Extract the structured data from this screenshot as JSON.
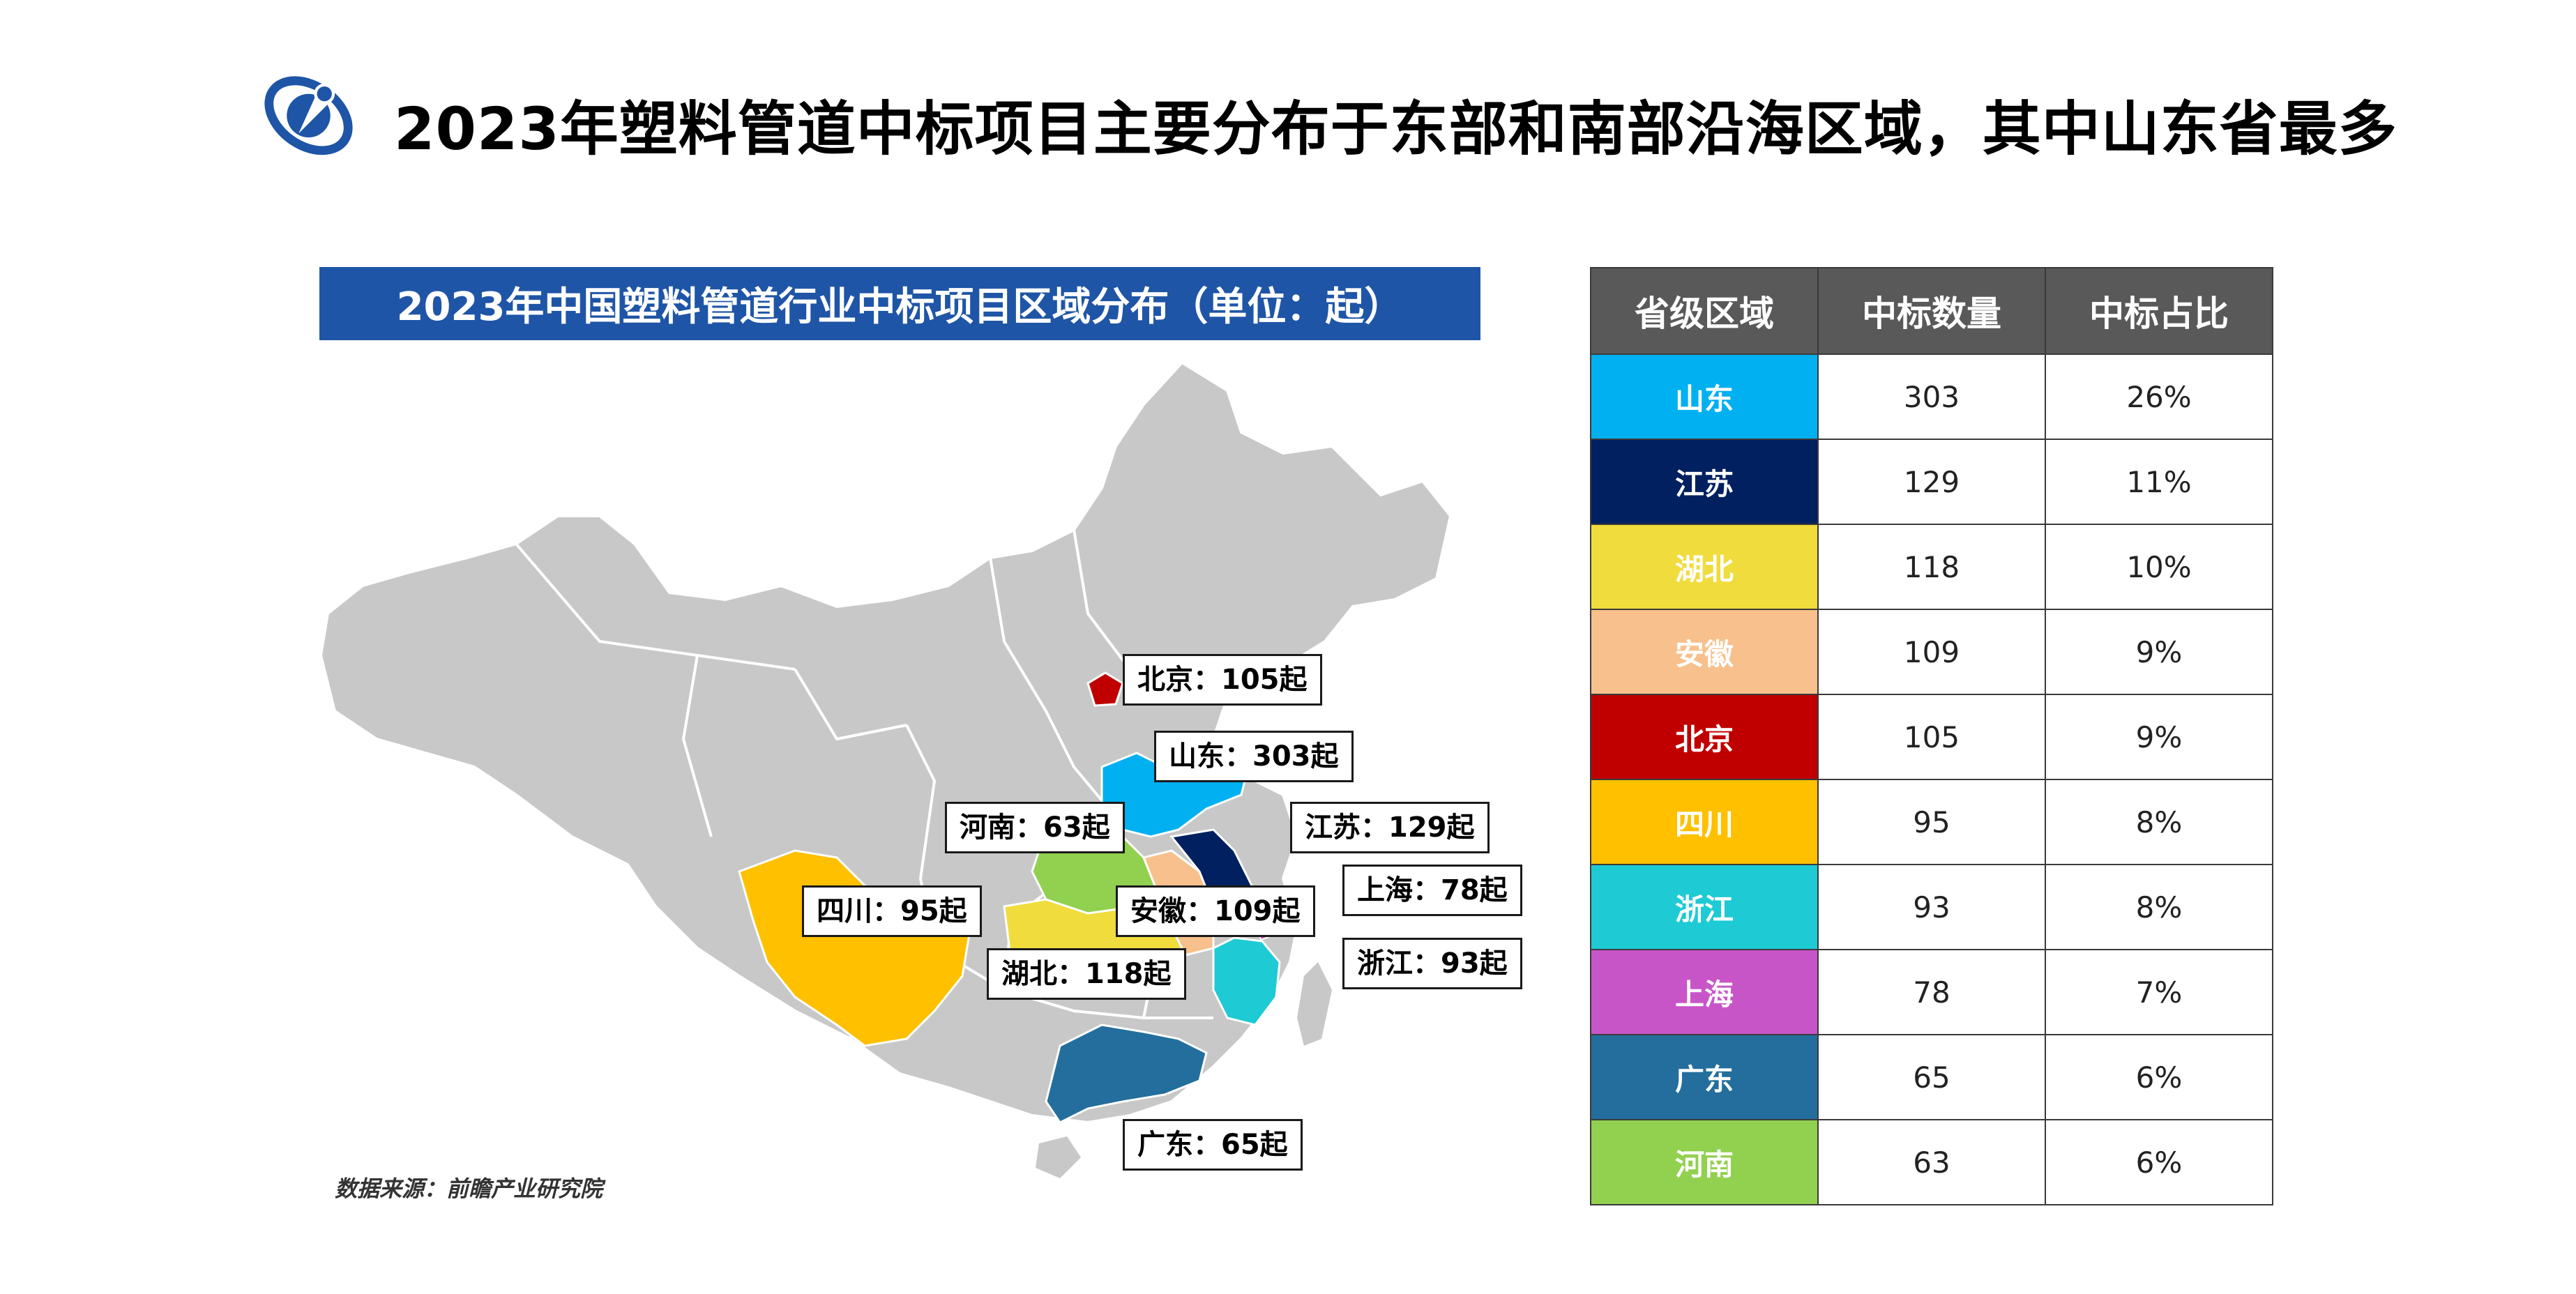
{
  "headline": "2023年塑料管道中标项目主要分布于东部和南部沿海区域，其中山东省最多",
  "map": {
    "title": "2023年中国塑料管道行业中标项目区域分布（单位：起）",
    "source": "数据来源：前瞻产业研究院",
    "base_color": "#c8c8c8",
    "labels": [
      {
        "id": "beijing",
        "text": "北京：105起"
      },
      {
        "id": "shandong",
        "text": "山东：303起"
      },
      {
        "id": "jiangsu",
        "text": "江苏：129起"
      },
      {
        "id": "henan",
        "text": "河南：63起"
      },
      {
        "id": "shanghai",
        "text": "上海：78起"
      },
      {
        "id": "sichuan",
        "text": "四川：95起"
      },
      {
        "id": "anhui",
        "text": "安徽：109起"
      },
      {
        "id": "hubei",
        "text": "湖北：118起"
      },
      {
        "id": "zhejiang",
        "text": "浙江：93起"
      },
      {
        "id": "guangdong",
        "text": "广东：65起"
      }
    ]
  },
  "table": {
    "headers": [
      "省级区域",
      "中标数量",
      "中标占比"
    ],
    "rows": [
      {
        "province": "山东",
        "count": "303",
        "share": "26%",
        "color": "#00b0f0"
      },
      {
        "province": "江苏",
        "count": "129",
        "share": "11%",
        "color": "#002060"
      },
      {
        "province": "湖北",
        "count": "118",
        "share": "10%",
        "color": "#f0dc3c"
      },
      {
        "province": "安徽",
        "count": "109",
        "share": "9%",
        "color": "#f8c08c"
      },
      {
        "province": "北京",
        "count": "105",
        "share": "9%",
        "color": "#c00000"
      },
      {
        "province": "四川",
        "count": "95",
        "share": "8%",
        "color": "#ffc000"
      },
      {
        "province": "浙江",
        "count": "93",
        "share": "8%",
        "color": "#1ecad3"
      },
      {
        "province": "上海",
        "count": "78",
        "share": "7%",
        "color": "#c855c8"
      },
      {
        "province": "广东",
        "count": "65",
        "share": "6%",
        "color": "#236e9c"
      },
      {
        "province": "河南",
        "count": "63",
        "share": "6%",
        "color": "#92d050"
      }
    ]
  }
}
